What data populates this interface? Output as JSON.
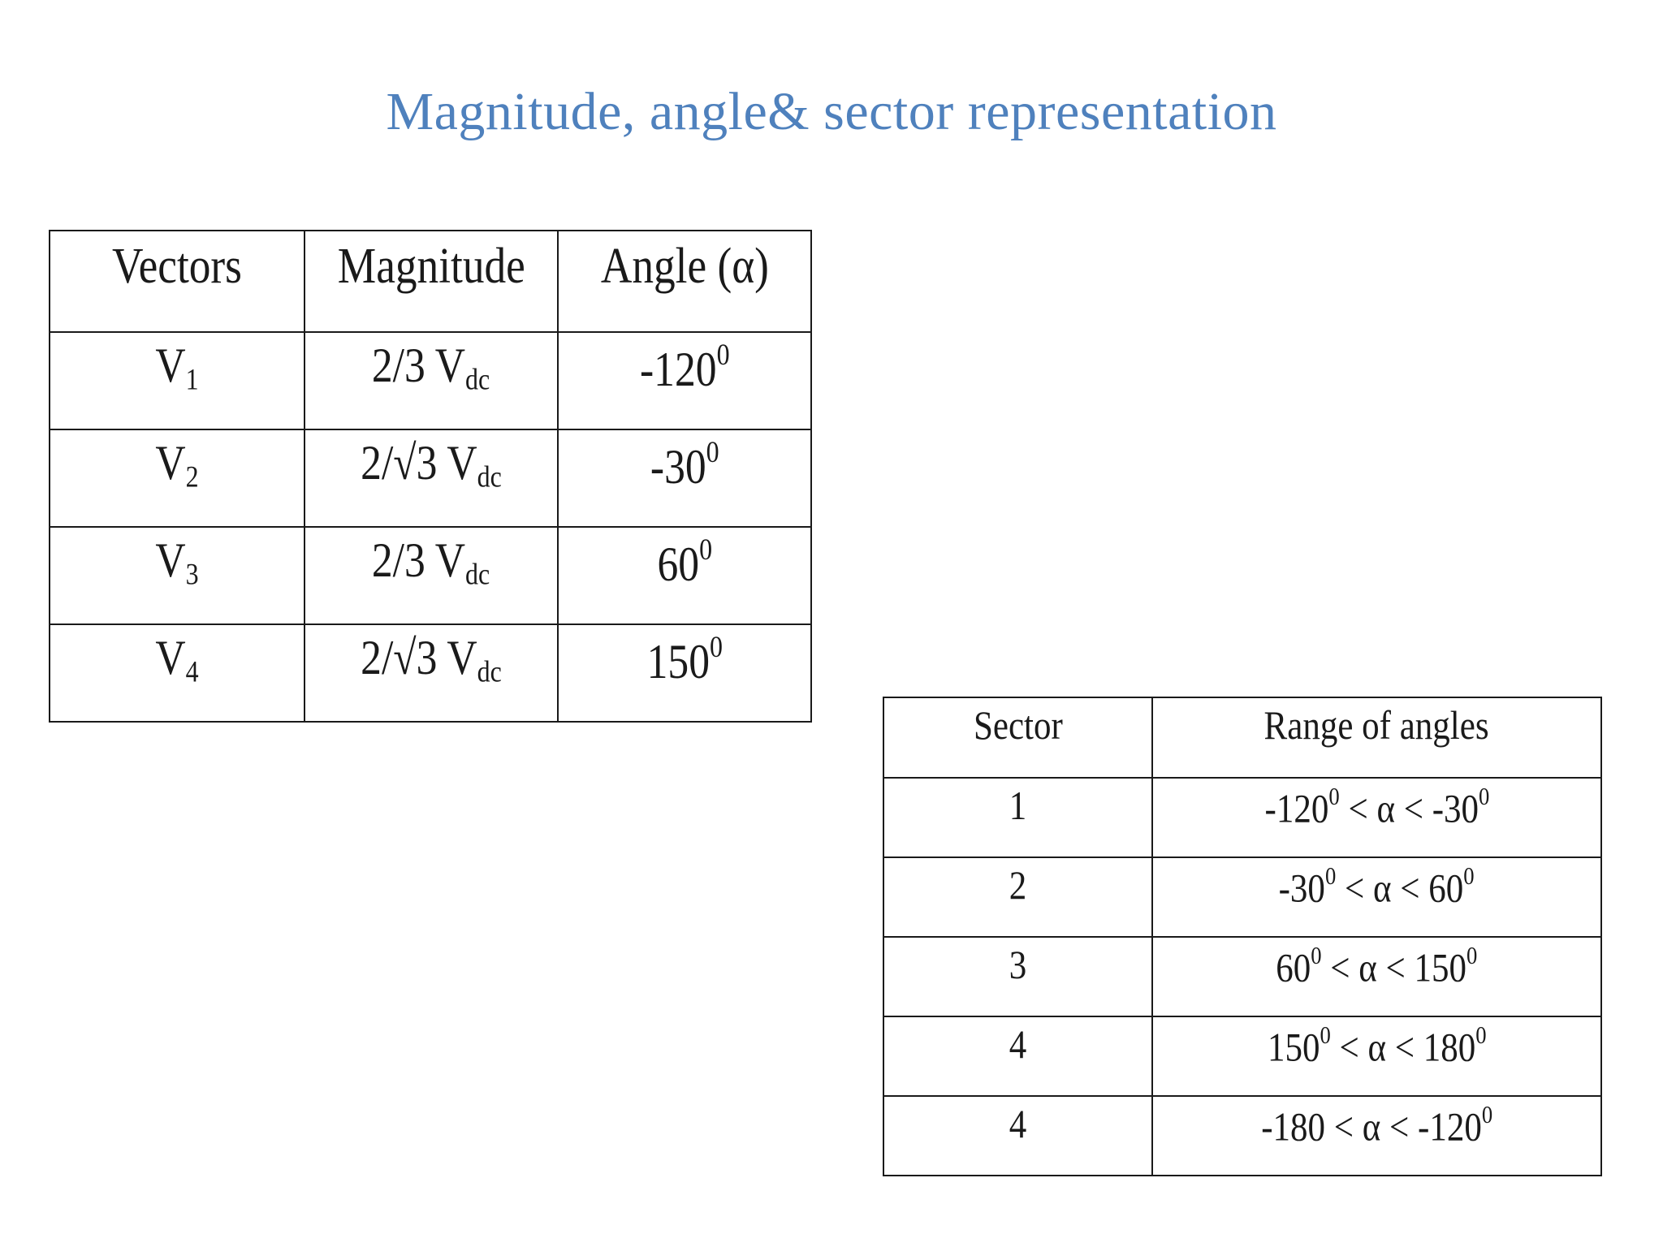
{
  "slide": {
    "title": "Magnitude, angle& sector representation",
    "title_color": "#4f81bd"
  },
  "vectors_table": {
    "headers": [
      "Vectors",
      "Magnitude",
      "Angle (α)"
    ],
    "rows": [
      {
        "vector": "V",
        "vector_sub": "1",
        "magnitude": "2/3 V",
        "magnitude_sub": "dc",
        "angle": "-120",
        "angle_sup": "0"
      },
      {
        "vector": "V",
        "vector_sub": "2",
        "magnitude": "2/√3 V",
        "magnitude_sub": "dc",
        "angle": "-30",
        "angle_sup": "0"
      },
      {
        "vector": "V",
        "vector_sub": "3",
        "magnitude": "2/3 V",
        "magnitude_sub": "dc",
        "angle": "60",
        "angle_sup": "0"
      },
      {
        "vector": "V",
        "vector_sub": "4",
        "magnitude": "2/√3 V",
        "magnitude_sub": "dc",
        "angle": "150",
        "angle_sup": "0"
      }
    ]
  },
  "sector_table": {
    "headers": [
      "Sector",
      "Range of angles"
    ],
    "rows": [
      {
        "sector": "1",
        "range": [
          {
            "t": "-120"
          },
          {
            "sup": "0"
          },
          {
            "t": " < α < -30"
          },
          {
            "sup": "0"
          }
        ]
      },
      {
        "sector": "2",
        "range": [
          {
            "t": "-30"
          },
          {
            "sup": "0"
          },
          {
            "t": " < α < 60"
          },
          {
            "sup": "0"
          }
        ]
      },
      {
        "sector": "3",
        "range": [
          {
            "t": "60"
          },
          {
            "sup": "0"
          },
          {
            "t": " < α < 150"
          },
          {
            "sup": "0"
          }
        ]
      },
      {
        "sector": "4",
        "range": [
          {
            "t": "150"
          },
          {
            "sup": "0"
          },
          {
            "t": " < α < 180"
          },
          {
            "sup": "0"
          }
        ]
      },
      {
        "sector": "4",
        "range": [
          {
            "t": "-180 < α < -120"
          },
          {
            "sup": "0"
          }
        ]
      }
    ]
  }
}
